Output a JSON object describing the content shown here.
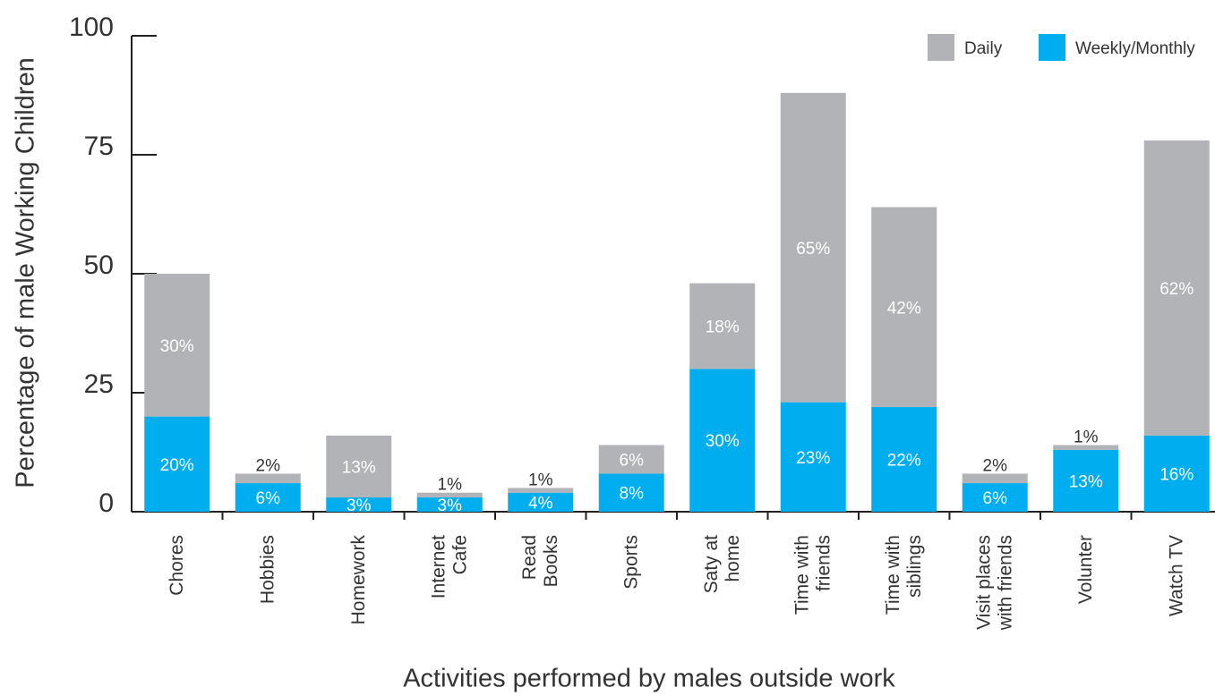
{
  "chart_data": {
    "type": "stacked_bar",
    "xlabel": "Activities performed by males outside work",
    "ylabel": "Percentage of male Working Children",
    "categories": [
      "Chores",
      "Hobbies",
      "Homework",
      "Internet\nCafe",
      "Read\nBooks",
      "Sports",
      "Saty at\nhome",
      "Time with\nfriends",
      "Time with\nsiblings",
      "Visit places\nwith friends",
      "Volunter",
      "Watch TV"
    ],
    "series": [
      {
        "name": "Weekly/Monthly",
        "color": "#00aeef",
        "values": [
          20,
          6,
          3,
          3,
          4,
          8,
          30,
          23,
          22,
          6,
          13,
          16
        ],
        "value_labels": [
          "20%",
          "6%",
          "3%",
          "3%",
          "4%",
          "8%",
          "30%",
          "23%",
          "22%",
          "6%",
          "13%",
          "16%"
        ]
      },
      {
        "name": "Daily",
        "color": "#b1b3b6",
        "values": [
          30,
          2,
          13,
          1,
          1,
          6,
          18,
          65,
          42,
          2,
          1,
          62
        ],
        "value_labels": [
          "30%",
          "2%",
          "13%",
          "1%",
          "1%",
          "6%",
          "18%",
          "65%",
          "42%",
          "2%",
          "1%",
          "62%"
        ]
      }
    ],
    "ylim": [
      0,
      100
    ],
    "yticks": [
      0,
      25,
      50,
      75,
      100
    ],
    "legend": "top-right"
  }
}
